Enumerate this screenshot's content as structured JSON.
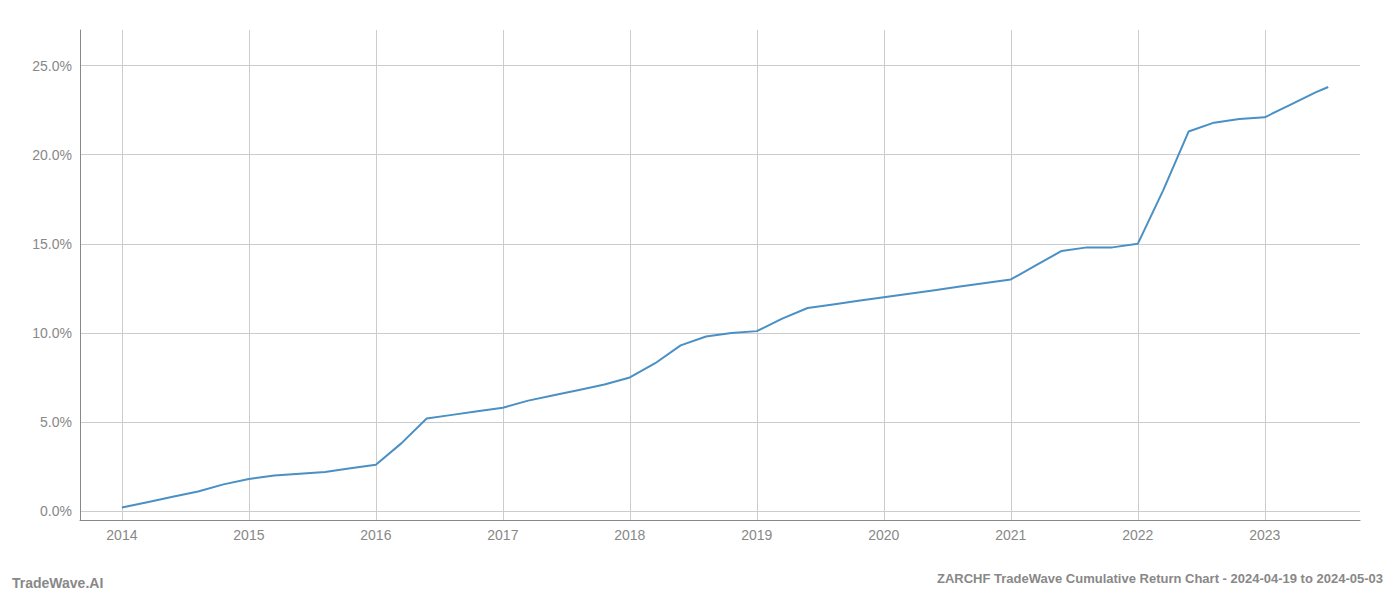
{
  "chart_data": {
    "type": "line",
    "title": "ZARCHF TradeWave Cumulative Return Chart - 2024-04-19 to 2024-05-03",
    "annotations": [
      "TradeWave.AI"
    ],
    "color": "#4a90c4",
    "grid": true,
    "x": [
      2014.0,
      2014.2,
      2014.4,
      2014.6,
      2014.8,
      2015.0,
      2015.2,
      2015.4,
      2015.6,
      2015.8,
      2016.0,
      2016.2,
      2016.4,
      2016.6,
      2016.8,
      2017.0,
      2017.2,
      2017.4,
      2017.6,
      2017.8,
      2018.0,
      2018.2,
      2018.4,
      2018.6,
      2018.8,
      2019.0,
      2019.2,
      2019.4,
      2019.6,
      2019.8,
      2020.0,
      2020.2,
      2020.4,
      2020.6,
      2020.8,
      2021.0,
      2021.2,
      2021.4,
      2021.6,
      2021.8,
      2022.0,
      2022.2,
      2022.4,
      2022.6,
      2022.8,
      2023.0,
      2023.2,
      2023.4,
      2023.5
    ],
    "values": [
      0.002,
      0.005,
      0.008,
      0.011,
      0.015,
      0.018,
      0.02,
      0.021,
      0.022,
      0.024,
      0.026,
      0.038,
      0.052,
      0.054,
      0.056,
      0.058,
      0.062,
      0.065,
      0.068,
      0.071,
      0.075,
      0.083,
      0.093,
      0.098,
      0.1,
      0.101,
      0.108,
      0.114,
      0.116,
      0.118,
      0.12,
      0.122,
      0.124,
      0.126,
      0.128,
      0.13,
      0.138,
      0.146,
      0.148,
      0.148,
      0.15,
      0.18,
      0.213,
      0.218,
      0.22,
      0.221,
      0.228,
      0.235,
      0.238
    ],
    "xlim": [
      2013.67,
      2023.75
    ],
    "xticks": [
      2014,
      2015,
      2016,
      2017,
      2018,
      2019,
      2020,
      2021,
      2022,
      2023
    ],
    "ylim": [
      -0.005,
      0.27
    ],
    "yticks": [
      {
        "value": 0.0,
        "label": "0.0%"
      },
      {
        "value": 0.05,
        "label": "5.0%"
      },
      {
        "value": 0.1,
        "label": "10.0%"
      },
      {
        "value": 0.15,
        "label": "15.0%"
      },
      {
        "value": 0.2,
        "label": "20.0%"
      },
      {
        "value": 0.25,
        "label": "25.0%"
      }
    ]
  }
}
